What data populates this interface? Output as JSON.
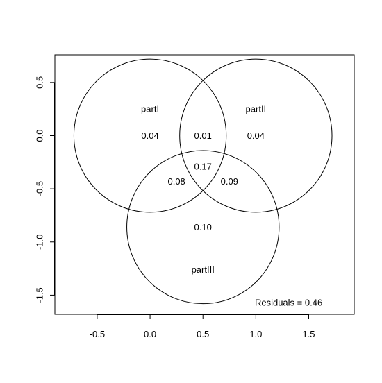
{
  "chart_data": {
    "type": "venn",
    "xlim": [
      -0.9,
      1.93
    ],
    "ylim": [
      -1.68,
      0.76
    ],
    "x_ticks": [
      {
        "value": -0.5,
        "label": "-0.5"
      },
      {
        "value": 0.0,
        "label": "0.0"
      },
      {
        "value": 0.5,
        "label": "0.5"
      },
      {
        "value": 1.0,
        "label": "1.0"
      },
      {
        "value": 1.5,
        "label": "1.5"
      }
    ],
    "y_ticks": [
      {
        "value": 0.5,
        "label": "0.5"
      },
      {
        "value": 0.0,
        "label": "0.0"
      },
      {
        "value": -0.5,
        "label": "-0.5"
      },
      {
        "value": -1.0,
        "label": "-1.0"
      },
      {
        "value": -1.5,
        "label": "-1.5"
      }
    ],
    "sets": [
      {
        "name": "partI",
        "center": [
          0.0,
          0.0
        ],
        "radius": 0.72,
        "label_pos": [
          0.0,
          0.25
        ]
      },
      {
        "name": "partII",
        "center": [
          1.0,
          0.0
        ],
        "radius": 0.72,
        "label_pos": [
          1.0,
          0.25
        ]
      },
      {
        "name": "partIII",
        "center": [
          0.5,
          -0.86
        ],
        "radius": 0.72,
        "label_pos": [
          0.5,
          -1.26
        ]
      }
    ],
    "regions": [
      {
        "sets": [
          "partI"
        ],
        "value": "0.04",
        "pos": [
          0.0,
          0.0
        ]
      },
      {
        "sets": [
          "partI",
          "partII"
        ],
        "value": "0.01",
        "pos": [
          0.5,
          0.0
        ]
      },
      {
        "sets": [
          "partII"
        ],
        "value": "0.04",
        "pos": [
          1.0,
          0.0
        ]
      },
      {
        "sets": [
          "partI",
          "partII",
          "partIII"
        ],
        "value": "0.17",
        "pos": [
          0.5,
          -0.29
        ]
      },
      {
        "sets": [
          "partI",
          "partIII"
        ],
        "value": "0.08",
        "pos": [
          0.25,
          -0.43
        ]
      },
      {
        "sets": [
          "partII",
          "partIII"
        ],
        "value": "0.09",
        "pos": [
          0.75,
          -0.43
        ]
      },
      {
        "sets": [
          "partIII"
        ],
        "value": "0.10",
        "pos": [
          0.5,
          -0.86
        ]
      }
    ],
    "residuals_text": "Residuals = 0.46",
    "residuals_pos": [
      1.31,
      -1.57
    ]
  }
}
